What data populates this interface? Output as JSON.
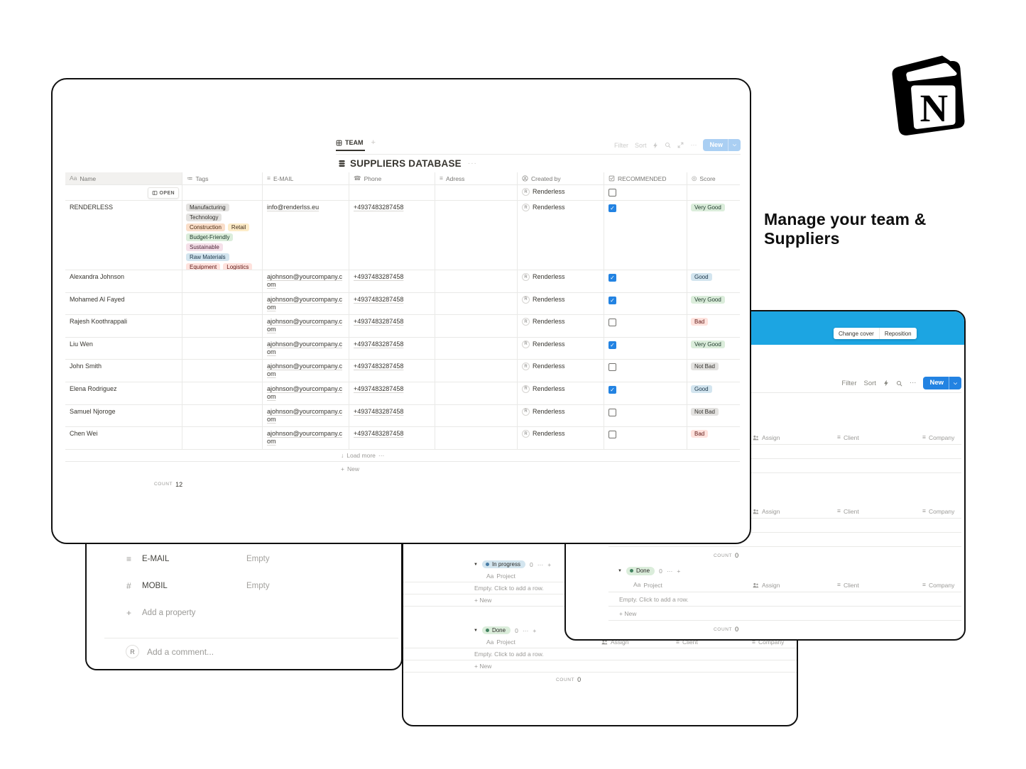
{
  "branding": {
    "logo_icon": "notion-logo",
    "tagline_lines": [
      "Manage your team &",
      "Suppliers"
    ]
  },
  "palette": {
    "accent_blue": "#2383E2",
    "cover_blue": "#1CA5E2",
    "tag_colors": {
      "gray": {
        "bg": "#E3E2E0",
        "text": "#32302C"
      },
      "orange": {
        "bg": "#FADEC9",
        "text": "#49290E"
      },
      "yellow": {
        "bg": "#FDECC8",
        "text": "#402C1B"
      },
      "green": {
        "bg": "#DBEDDB",
        "text": "#1C3829"
      },
      "pink": {
        "bg": "#F5E0E9",
        "text": "#4C2337"
      },
      "blue": {
        "bg": "#D3E5EF",
        "text": "#183347"
      },
      "red": {
        "bg": "#FFE2DD",
        "text": "#5D1715"
      }
    },
    "dot_colors": {
      "blue": "#487CA5",
      "green": "#448361"
    }
  },
  "main_window": {
    "tab_bar": {
      "active_tab": {
        "icon": "table-icon",
        "label": "TEAM"
      },
      "controls": {
        "filter": "Filter",
        "sort": "Sort",
        "icons": [
          "lightning-icon",
          "search-icon",
          "expand-icon",
          "dots-icon"
        ],
        "new_button": {
          "label": "New",
          "chevron": "chevron-down-icon"
        }
      }
    },
    "title": {
      "icon": "database-icon",
      "label": "SUPPLIERS DATABASE",
      "more_icon": "dots-icon"
    },
    "open_button": {
      "icon": "open-icon",
      "label": "OPEN"
    },
    "created_by_avatar": "R",
    "columns": [
      {
        "icon": "name-icon",
        "label": "Name",
        "key": "name"
      },
      {
        "icon": "tags-icon",
        "label": "Tags",
        "key": "tags"
      },
      {
        "icon": "text-icon",
        "label": "E-MAIL",
        "key": "email"
      },
      {
        "icon": "phone-icon",
        "label": "Phone",
        "key": "phone"
      },
      {
        "icon": "text-icon",
        "label": "Adress",
        "key": "adress"
      },
      {
        "icon": "person-circle-icon",
        "label": "Created by",
        "key": "created_by"
      },
      {
        "icon": "checkbox-icon",
        "label": "RECOMMENDED",
        "key": "recommended"
      },
      {
        "icon": "score-icon",
        "label": "Score",
        "key": "score"
      }
    ],
    "rows": [
      {
        "name": "",
        "tags": [],
        "email": "",
        "phone": "",
        "adress": "",
        "created_by": "Renderless",
        "recommended": false,
        "score": null,
        "show_open": true
      },
      {
        "name": "RENDERLESS",
        "tags": [
          {
            "label": "Manufacturing",
            "color": "gray"
          },
          {
            "label": "Technology",
            "color": "gray"
          },
          {
            "label": "Construction",
            "color": "orange"
          },
          {
            "label": "Retail",
            "color": "yellow"
          },
          {
            "label": "Budget-Friendly",
            "color": "green"
          },
          {
            "label": "Sustainable",
            "color": "pink"
          },
          {
            "label": "Raw Materials",
            "color": "blue"
          },
          {
            "label": "Equipment",
            "color": "red"
          },
          {
            "label": "Logistics",
            "color": "red"
          }
        ],
        "email": "info@renderlss.eu",
        "phone": "+4937483287458",
        "adress": "",
        "created_by": "Renderless",
        "recommended": true,
        "score": {
          "label": "Very Good",
          "color": "green"
        }
      },
      {
        "name": "Alexandra Johnson",
        "tags": [],
        "email": "ajohnson@yourcompany.com",
        "phone": "+4937483287458",
        "adress": "",
        "created_by": "Renderless",
        "recommended": true,
        "score": {
          "label": "Good",
          "color": "blue"
        }
      },
      {
        "name": "Mohamed Al Fayed",
        "tags": [],
        "email": "ajohnson@yourcompany.com",
        "phone": "+4937483287458",
        "adress": "",
        "created_by": "Renderless",
        "recommended": true,
        "score": {
          "label": "Very Good",
          "color": "green"
        }
      },
      {
        "name": "Rajesh Koothrappali",
        "tags": [],
        "email": "ajohnson@yourcompany.com",
        "phone": "+4937483287458",
        "adress": "",
        "created_by": "Renderless",
        "recommended": false,
        "score": {
          "label": "Bad",
          "color": "red"
        }
      },
      {
        "name": "Liu Wen",
        "tags": [],
        "email": "ajohnson@yourcompany.com",
        "phone": "+4937483287458",
        "adress": "",
        "created_by": "Renderless",
        "recommended": true,
        "score": {
          "label": "Very Good",
          "color": "green"
        }
      },
      {
        "name": "John Smith",
        "tags": [],
        "email": "ajohnson@yourcompany.com",
        "phone": "+4937483287458",
        "adress": "",
        "created_by": "Renderless",
        "recommended": false,
        "score": {
          "label": "Not Bad",
          "color": "gray"
        }
      },
      {
        "name": "Elena Rodriguez",
        "tags": [],
        "email": "ajohnson@yourcompany.com",
        "phone": "+4937483287458",
        "adress": "",
        "created_by": "Renderless",
        "recommended": true,
        "score": {
          "label": "Good",
          "color": "blue"
        }
      },
      {
        "name": "Samuel Njoroge",
        "tags": [],
        "email": "ajohnson@yourcompany.com",
        "phone": "+4937483287458",
        "adress": "",
        "created_by": "Renderless",
        "recommended": false,
        "score": {
          "label": "Not Bad",
          "color": "gray"
        }
      },
      {
        "name": "Chen Wei",
        "tags": [],
        "email": "ajohnson@yourcompany.com",
        "phone": "+4937483287458",
        "adress": "",
        "created_by": "Renderless",
        "recommended": false,
        "score": {
          "label": "Bad",
          "color": "red"
        }
      }
    ],
    "footer": {
      "load_more": {
        "icon": "arrow-down-icon",
        "label": "Load more",
        "more_icon": "dots-icon"
      },
      "new_row": {
        "icon": "plus-icon",
        "label": "New"
      },
      "count": {
        "label": "COUNT",
        "value": "12"
      }
    }
  },
  "detail_window": {
    "properties": [
      {
        "icon": "text-icon",
        "label": "E-MAIL",
        "value": "Empty"
      },
      {
        "icon": "number-icon",
        "label": "MOBIL",
        "value": "Empty"
      }
    ],
    "add_property": {
      "icon": "plus-icon",
      "label": "Add a property"
    },
    "comment": {
      "avatar": "R",
      "placeholder": "Add a comment..."
    }
  },
  "board_window": {
    "groups": [
      {
        "status": {
          "label": "In progress",
          "color": "blue"
        },
        "count": "0",
        "column_header": "Project",
        "empty_text": "Empty. Click to add a row.",
        "new_label": "New"
      },
      {
        "status": {
          "label": "Done",
          "color": "green"
        },
        "count": "0",
        "column_header": "Project",
        "empty_text": "Empty. Click to add a row.",
        "new_label": "New"
      }
    ],
    "extra_columns": [
      {
        "icon": "people-icon",
        "label": "Assign"
      },
      {
        "icon": "text-icon",
        "label": "Client"
      },
      {
        "icon": "text-icon",
        "label": "Company"
      }
    ],
    "count": {
      "label": "COUNT",
      "value": "0"
    }
  },
  "projects_window": {
    "cover_buttons": [
      "Change cover",
      "Reposition"
    ],
    "toolbar": {
      "filter": "Filter",
      "sort": "Sort",
      "icons": [
        "lightning-icon",
        "search-icon",
        "dots-icon"
      ],
      "new_button": {
        "label": "New",
        "chevron": "chevron-down-icon"
      }
    },
    "column_headers": [
      {
        "icon": "name-icon",
        "label": "Project"
      },
      {
        "icon": "people-icon",
        "label": "Assign"
      },
      {
        "icon": "text-icon",
        "label": "Client"
      },
      {
        "icon": "text-icon",
        "label": "Company"
      }
    ],
    "row_labels": {
      "empty_text": "Empty. Click to add a row.",
      "new_label": "New"
    },
    "groups": [
      {
        "status": null,
        "count": "0"
      },
      {
        "status": null,
        "count": "0"
      },
      {
        "status": {
          "label": "Done",
          "color": "green"
        },
        "count": "0"
      }
    ],
    "count_label": "COUNT"
  }
}
